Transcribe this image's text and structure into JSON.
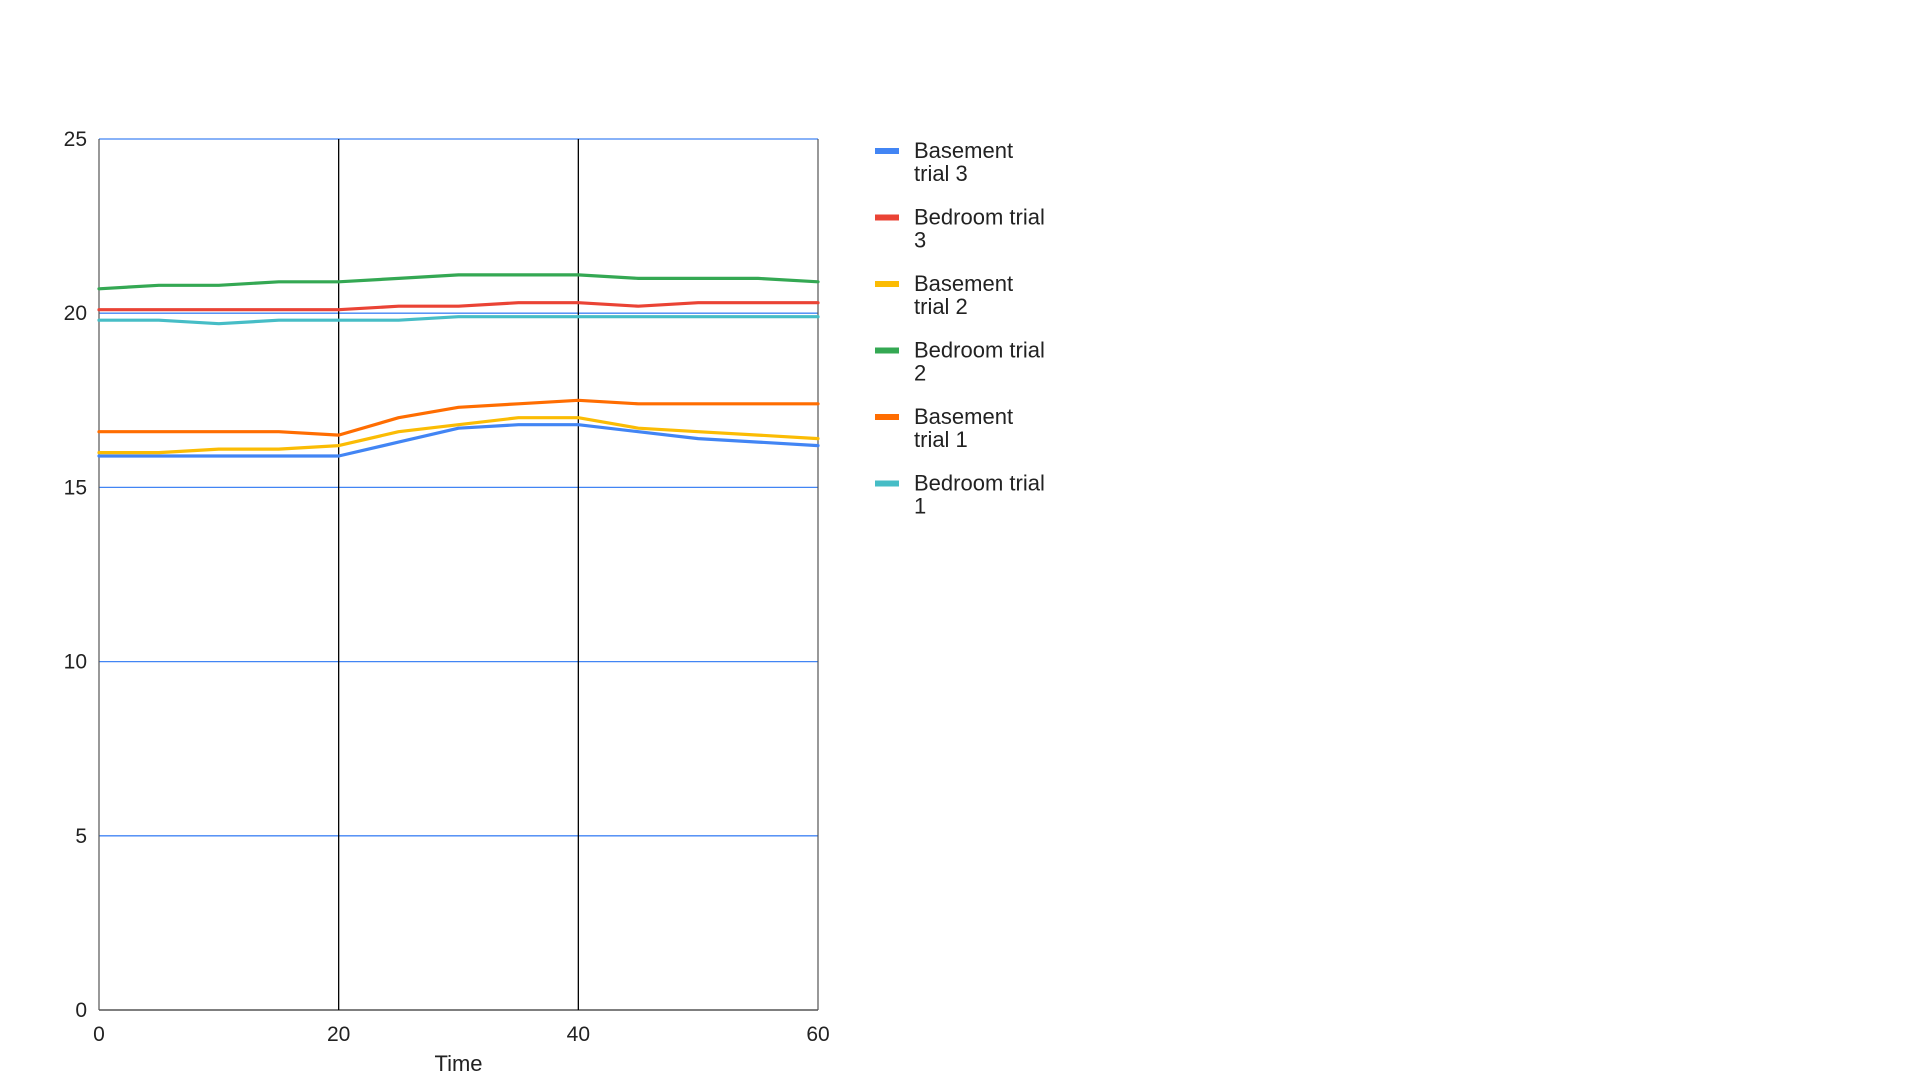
{
  "chart_data": {
    "type": "line",
    "title": "",
    "xlabel": "Time",
    "ylabel": "",
    "xlim": [
      0,
      60
    ],
    "ylim": [
      0,
      25
    ],
    "x_ticks": [
      0,
      20,
      40,
      60
    ],
    "y_ticks": [
      0,
      5,
      10,
      15,
      20,
      25
    ],
    "x_tick_labels": [
      "0",
      "20",
      "40",
      "60"
    ],
    "y_tick_labels": [
      "0",
      "5",
      "10",
      "15",
      "20",
      "25"
    ],
    "grid": true,
    "legend_position": "right",
    "x": [
      0,
      5,
      10,
      15,
      20,
      25,
      30,
      35,
      40,
      45,
      50,
      55,
      60
    ],
    "series": [
      {
        "name": "Basement trial 3",
        "legend_lines": [
          "Basement",
          "trial 3"
        ],
        "color": "#4285f4",
        "values": [
          15.9,
          15.9,
          15.9,
          15.9,
          15.9,
          16.3,
          16.7,
          16.8,
          16.8,
          16.6,
          16.4,
          16.3,
          16.2
        ]
      },
      {
        "name": "Bedroom trial 3",
        "legend_lines": [
          "Bedroom trial",
          "3"
        ],
        "color": "#ea4335",
        "values": [
          20.1,
          20.1,
          20.1,
          20.1,
          20.1,
          20.2,
          20.2,
          20.3,
          20.3,
          20.2,
          20.3,
          20.3,
          20.3
        ]
      },
      {
        "name": "Basement trial 2",
        "legend_lines": [
          "Basement",
          "trial 2"
        ],
        "color": "#fbbc04",
        "values": [
          16.0,
          16.0,
          16.1,
          16.1,
          16.2,
          16.6,
          16.8,
          17.0,
          17.0,
          16.7,
          16.6,
          16.5,
          16.4
        ]
      },
      {
        "name": "Bedroom trial 2",
        "legend_lines": [
          "Bedroom trial",
          "2"
        ],
        "color": "#34a853",
        "values": [
          20.7,
          20.8,
          20.8,
          20.9,
          20.9,
          21.0,
          21.1,
          21.1,
          21.1,
          21.0,
          21.0,
          21.0,
          20.9
        ]
      },
      {
        "name": "Basement trial 1",
        "legend_lines": [
          "Basement",
          "trial 1"
        ],
        "color": "#ff6d01",
        "values": [
          16.6,
          16.6,
          16.6,
          16.6,
          16.5,
          17.0,
          17.3,
          17.4,
          17.5,
          17.4,
          17.4,
          17.4,
          17.4
        ]
      },
      {
        "name": "Bedroom trial 1",
        "legend_lines": [
          "Bedroom trial",
          "1"
        ],
        "color": "#46bdc6",
        "values": [
          19.8,
          19.8,
          19.7,
          19.8,
          19.8,
          19.8,
          19.9,
          19.9,
          19.9,
          19.9,
          19.9,
          19.9,
          19.9
        ]
      }
    ],
    "colors": {
      "horizontal_grid": "#4285f4",
      "vertical_grid": "#000000"
    }
  }
}
